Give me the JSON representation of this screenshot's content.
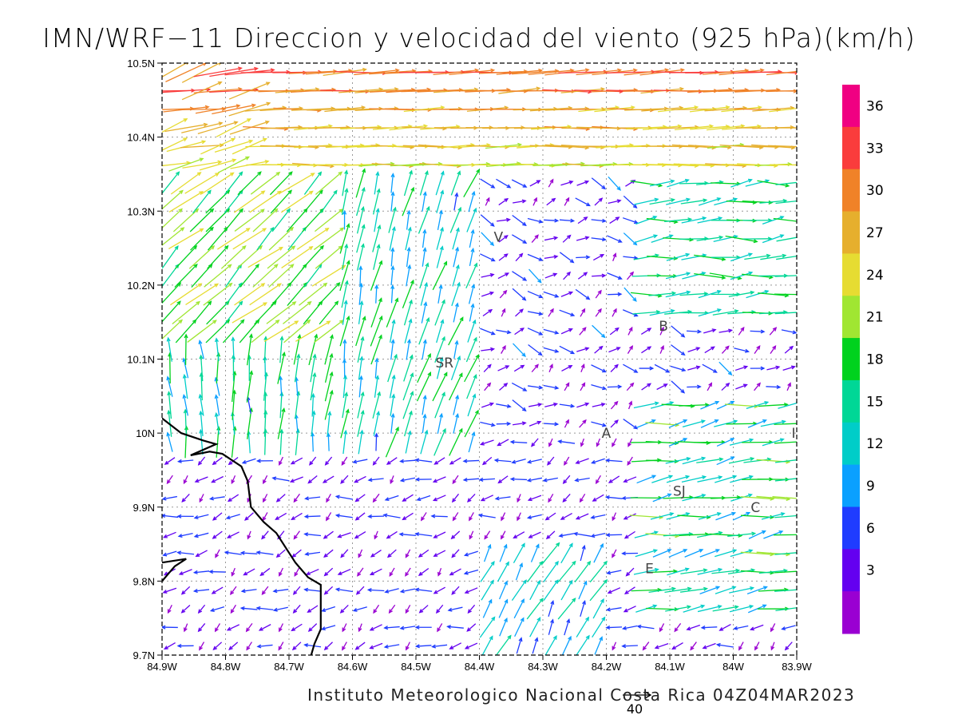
{
  "title": "IMN/WRF−11 Direccion y velocidad del viento (925 hPa)(km/h)",
  "footer": "Instituto Meteorologico Nacional Costa Rica 04Z04MAR2023",
  "reference_vector": {
    "value": 40,
    "label": "40"
  },
  "map": {
    "lon_range": [
      -84.9,
      -83.9
    ],
    "lat_range": [
      9.7,
      10.5
    ],
    "lat_ticks": [
      {
        "value": 10.5,
        "label": "10.5N"
      },
      {
        "value": 10.4,
        "label": "10.4N"
      },
      {
        "value": 10.3,
        "label": "10.3N"
      },
      {
        "value": 10.2,
        "label": "10.2N"
      },
      {
        "value": 10.1,
        "label": "10.1N"
      },
      {
        "value": 10.0,
        "label": "10N"
      },
      {
        "value": 9.9,
        "label": "9.9N"
      },
      {
        "value": 9.8,
        "label": "9.8N"
      },
      {
        "value": 9.7,
        "label": "9.7N"
      }
    ],
    "lon_ticks": [
      {
        "value": -84.9,
        "label": "84.9W"
      },
      {
        "value": -84.8,
        "label": "84.8W"
      },
      {
        "value": -84.7,
        "label": "84.7W"
      },
      {
        "value": -84.6,
        "label": "84.6W"
      },
      {
        "value": -84.5,
        "label": "84.5W"
      },
      {
        "value": -84.4,
        "label": "84.4W"
      },
      {
        "value": -84.3,
        "label": "84.3W"
      },
      {
        "value": -84.2,
        "label": "84.2W"
      },
      {
        "value": -84.1,
        "label": "84.1W"
      },
      {
        "value": -84.0,
        "label": "84W"
      },
      {
        "value": -83.9,
        "label": "83.9W"
      }
    ],
    "cities": [
      {
        "label": "V",
        "lon": -84.37,
        "lat": 10.265
      },
      {
        "label": "SR",
        "lon": -84.455,
        "lat": 10.095
      },
      {
        "label": "B",
        "lon": -84.11,
        "lat": 10.145
      },
      {
        "label": "A",
        "lon": -84.2,
        "lat": 10.0
      },
      {
        "label": "I",
        "lon": -83.905,
        "lat": 10.0
      },
      {
        "label": "SJ",
        "lon": -84.085,
        "lat": 9.922
      },
      {
        "label": "C",
        "lon": -83.965,
        "lat": 9.9
      },
      {
        "label": "E",
        "lon": -84.132,
        "lat": 9.817
      }
    ],
    "coastline": [
      [
        [
          -84.9,
          10.02
        ],
        [
          -84.87,
          10.0
        ],
        [
          -84.835,
          9.99
        ],
        [
          -84.815,
          9.985
        ],
        [
          -84.855,
          9.97
        ],
        [
          -84.825,
          9.975
        ],
        [
          -84.805,
          9.972
        ],
        [
          -84.775,
          9.955
        ],
        [
          -84.765,
          9.935
        ],
        [
          -84.76,
          9.9
        ],
        [
          -84.74,
          9.88
        ],
        [
          -84.72,
          9.865
        ],
        [
          -84.705,
          9.845
        ],
        [
          -84.69,
          9.825
        ],
        [
          -84.67,
          9.805
        ],
        [
          -84.65,
          9.795
        ],
        [
          -84.65,
          9.77
        ],
        [
          -84.65,
          9.735
        ],
        [
          -84.66,
          9.715
        ],
        [
          -84.665,
          9.7
        ]
      ],
      [
        [
          -84.9,
          9.8
        ],
        [
          -84.88,
          9.82
        ],
        [
          -84.862,
          9.83
        ],
        [
          -84.9,
          9.825
        ]
      ]
    ]
  },
  "chart_data": {
    "type": "wind-vector-field",
    "units": "km/h",
    "level": "925 hPa",
    "colorbar": {
      "ticks": [
        36,
        33,
        30,
        27,
        24,
        21,
        18,
        15,
        12,
        9,
        6,
        3
      ],
      "bins": [
        {
          "min": 0,
          "max": 4.5,
          "color": "#9a00d2"
        },
        {
          "min": 4.5,
          "max": 7.5,
          "color": "#6400f0"
        },
        {
          "min": 7.5,
          "max": 10.5,
          "color": "#1f3cff"
        },
        {
          "min": 10.5,
          "max": 13.5,
          "color": "#0aa0ff"
        },
        {
          "min": 13.5,
          "max": 16.5,
          "color": "#00cdc8"
        },
        {
          "min": 16.5,
          "max": 19.5,
          "color": "#00d796"
        },
        {
          "min": 19.5,
          "max": 22.5,
          "color": "#00d21e"
        },
        {
          "min": 22.5,
          "max": 25.5,
          "color": "#a0e632"
        },
        {
          "min": 25.5,
          "max": 28.5,
          "color": "#e6dc32"
        },
        {
          "min": 28.5,
          "max": 31.5,
          "color": "#e6af2d"
        },
        {
          "min": 31.5,
          "max": 34.5,
          "color": "#f08228"
        },
        {
          "min": 34.5,
          "max": 37.5,
          "color": "#fa3c3c"
        },
        {
          "min": 37.5,
          "max": 40,
          "color": "#f00082"
        }
      ]
    },
    "grid": {
      "dlon": 0.025,
      "dlat": 0.025
    },
    "regimes": [
      {
        "name": "northern-easterlies",
        "lat_min": 10.34,
        "direction_deg": 270,
        "speed": [
          24,
          36
        ]
      },
      {
        "name": "northwest-outflow",
        "lon_max": -84.6,
        "lat_min": 10.12,
        "lat_max": 10.34,
        "direction_deg": 225,
        "speed": [
          20,
          28
        ]
      },
      {
        "name": "central-convergence",
        "lon_range": [
          -84.6,
          -84.4
        ],
        "lat_range": [
          10.0,
          10.3
        ],
        "direction_deg": 190,
        "speed": [
          12,
          22
        ]
      },
      {
        "name": "southwest-calm",
        "lon_max": -84.45,
        "lat_max": 10.0,
        "direction_deg": 45,
        "speed": [
          3,
          8
        ]
      },
      {
        "name": "eastern-easterlies",
        "lon_min": -84.15,
        "lat_max": 10.05,
        "direction_deg": 240,
        "speed": [
          12,
          22
        ]
      },
      {
        "name": "south-central-northerlies",
        "lon_range": [
          -84.4,
          -84.2
        ],
        "lat_range": [
          9.7,
          9.85
        ],
        "direction_deg": 200,
        "speed": [
          9,
          18
        ]
      }
    ]
  }
}
